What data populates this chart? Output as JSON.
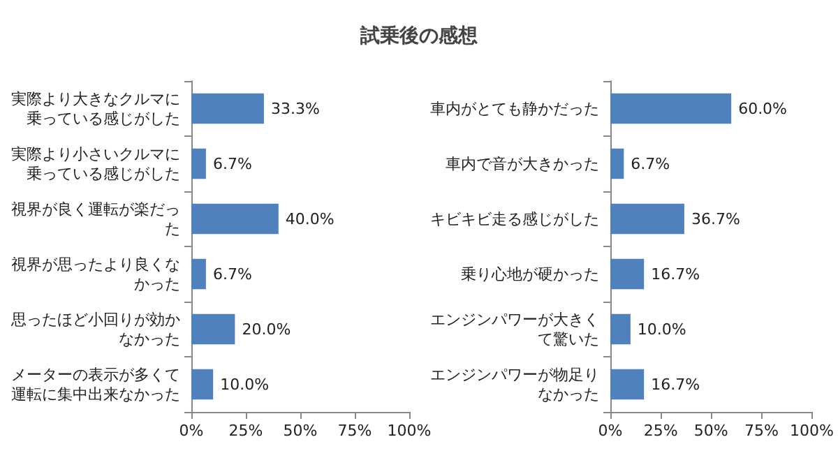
{
  "chart_data": [
    {
      "type": "bar",
      "orientation": "horizontal",
      "title": "試乗後の感想",
      "categories": [
        "実際より大きなクルマに乗っている感じがした",
        "実際より小さいクルマに乗っている感じがした",
        "視界が良く運転が楽だった",
        "視界が思ったより良くなかった",
        "思ったほど小回りが効かなかった",
        "メーターの表示が多くて運転に集中出来なかった"
      ],
      "series": [
        {
          "color": "#4f81bd",
          "values": [
            33.3,
            6.7,
            40.0,
            6.7,
            20.0,
            10.0
          ],
          "value_labels": [
            "33.3%",
            "6.7%",
            "40.0%",
            "6.7%",
            "20.0%",
            "10.0%"
          ]
        }
      ],
      "xlim": [
        0,
        100
      ],
      "xticks": [
        {
          "value": 0,
          "label": "0%"
        },
        {
          "value": 25,
          "label": "25%"
        },
        {
          "value": 50,
          "label": "50%"
        },
        {
          "value": 75,
          "label": "75%"
        },
        {
          "value": 100,
          "label": "100%"
        }
      ],
      "grid": false
    },
    {
      "type": "bar",
      "orientation": "horizontal",
      "categories": [
        "車内がとても静かだった",
        "車内で音が大きかった",
        "キビキビ走る感じがした",
        "乗り心地が硬かった",
        "エンジンパワーが大きくて驚いた",
        "エンジンパワーが物足りなかった"
      ],
      "series": [
        {
          "color": "#4f81bd",
          "values": [
            60.0,
            6.7,
            36.7,
            16.7,
            10.0,
            16.7
          ],
          "value_labels": [
            "60.0%",
            "6.7%",
            "36.7%",
            "16.7%",
            "10.0%",
            "16.7%"
          ]
        }
      ],
      "xlim": [
        0,
        100
      ],
      "xticks": [
        {
          "value": 0,
          "label": "0%"
        },
        {
          "value": 25,
          "label": "25%"
        },
        {
          "value": 50,
          "label": "50%"
        },
        {
          "value": 75,
          "label": "75%"
        },
        {
          "value": 100,
          "label": "100%"
        }
      ],
      "grid": false
    }
  ]
}
